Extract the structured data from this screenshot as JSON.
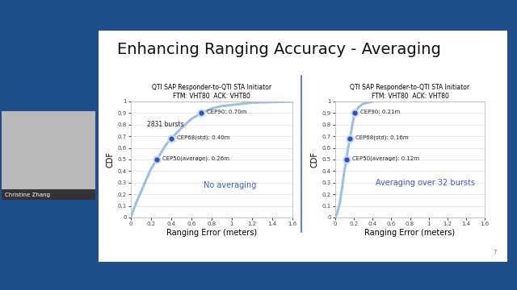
{
  "slide": {
    "title": "Enhancing Ranging Accuracy - Averaging",
    "presenter": "Christine Zhang",
    "page_number": 7
  },
  "chart_data": [
    {
      "type": "line",
      "title": "QTI SAP Responder-to-QTI STA Initiator\nFTM: VHT80  ACK: VHT80",
      "x_label": "Ranging Error (meters)",
      "y_label": "CDF",
      "x": [
        0,
        0.02,
        0.05,
        0.1,
        0.15,
        0.2,
        0.26,
        0.3,
        0.35,
        0.4,
        0.5,
        0.6,
        0.7,
        0.8,
        0.9,
        1.0,
        1.1,
        1.2,
        1.4,
        1.6
      ],
      "values": [
        0,
        0.05,
        0.12,
        0.22,
        0.32,
        0.42,
        0.5,
        0.56,
        0.63,
        0.68,
        0.77,
        0.85,
        0.9,
        0.94,
        0.96,
        0.97,
        0.98,
        0.99,
        0.995,
        1.0
      ],
      "color": "#9dbfe0",
      "xlim": [
        0,
        1.6
      ],
      "xticks": [
        0,
        0.2,
        0.4,
        0.6,
        0.8,
        1,
        1.2,
        1.4,
        1.6
      ],
      "ylim": [
        0,
        1
      ],
      "yticks": [
        0,
        0.1,
        0.2,
        0.3,
        0.4,
        0.5,
        0.6,
        0.7,
        0.8,
        0.9,
        1
      ],
      "grid": true,
      "annotations": [
        {
          "label": "CEP90: 0.70m",
          "x": 0.7,
          "y": 0.9
        },
        {
          "label": "CEP68(std): 0.40m",
          "x": 0.4,
          "y": 0.68
        },
        {
          "label": "CEP50(average): 0.26m",
          "x": 0.26,
          "y": 0.5
        }
      ],
      "notes": [
        "2831 bursts",
        "No averaging"
      ]
    },
    {
      "type": "line",
      "title": "QTI SAP Responder-to-QTI STA Initiator\nFTM: VHT80  ACK: VHT80",
      "x_label": "Ranging Error (meters)",
      "y_label": "CDF",
      "x": [
        0,
        0.02,
        0.05,
        0.08,
        0.1,
        0.12,
        0.14,
        0.16,
        0.18,
        0.21,
        0.25,
        0.3,
        0.35,
        0.4
      ],
      "values": [
        0,
        0.03,
        0.12,
        0.28,
        0.4,
        0.5,
        0.6,
        0.68,
        0.78,
        0.9,
        0.95,
        0.98,
        0.99,
        1.0
      ],
      "color": "#9dbfe0",
      "xlim": [
        0,
        1.6
      ],
      "xticks": [
        0,
        0.2,
        0.4,
        0.6,
        0.8,
        1,
        1.2,
        1.4,
        1.6
      ],
      "ylim": [
        0,
        1
      ],
      "yticks": [
        0,
        0.1,
        0.2,
        0.3,
        0.4,
        0.5,
        0.6,
        0.7,
        0.8,
        0.9,
        1
      ],
      "grid": true,
      "annotations": [
        {
          "label": "CEP90: 0.21m",
          "x": 0.21,
          "y": 0.9
        },
        {
          "label": "CEP68(std): 0.16m",
          "x": 0.16,
          "y": 0.68
        },
        {
          "label": "CEP50(average): 0.12m",
          "x": 0.12,
          "y": 0.5
        }
      ],
      "notes": [
        "Averaging over 32 bursts"
      ]
    }
  ]
}
